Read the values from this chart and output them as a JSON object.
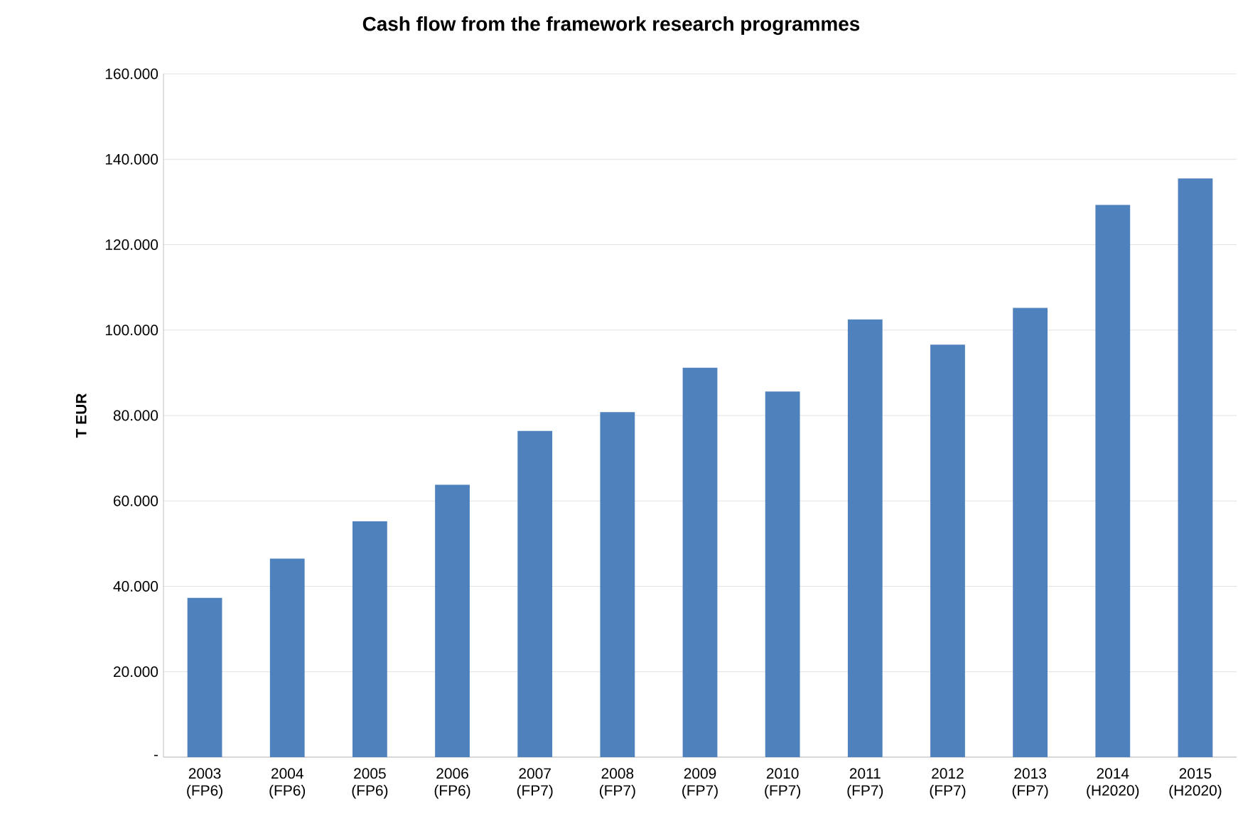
{
  "chart_data": {
    "type": "bar",
    "title": "Cash flow from the framework research programmes",
    "ylabel": "T EUR",
    "categories": [
      "2003 (FP6)",
      "2004 (FP6)",
      "2005 (FP6)",
      "2006 (FP6)",
      "2007 (FP7)",
      "2008 (FP7)",
      "2009 (FP7)",
      "2010 (FP7)",
      "2011 (FP7)",
      "2012 (FP7)",
      "2013 (FP7)",
      "2014 (H2020)",
      "2015 (H2020)"
    ],
    "values": [
      37300,
      46500,
      55200,
      63800,
      76400,
      80800,
      91200,
      85600,
      102500,
      96600,
      105200,
      129300,
      135500
    ],
    "color": "#4f81bd",
    "ylim": [
      0,
      160000
    ],
    "yticks": [
      {
        "value": 0,
        "label": "-"
      },
      {
        "value": 20000,
        "label": "20.000"
      },
      {
        "value": 40000,
        "label": "40.000"
      },
      {
        "value": 60000,
        "label": "60.000"
      },
      {
        "value": 80000,
        "label": "80.000"
      },
      {
        "value": 100000,
        "label": "100.000"
      },
      {
        "value": 120000,
        "label": "120.000"
      },
      {
        "value": 140000,
        "label": "140.000"
      },
      {
        "value": 160000,
        "label": "160.000"
      }
    ],
    "grid": "y"
  }
}
